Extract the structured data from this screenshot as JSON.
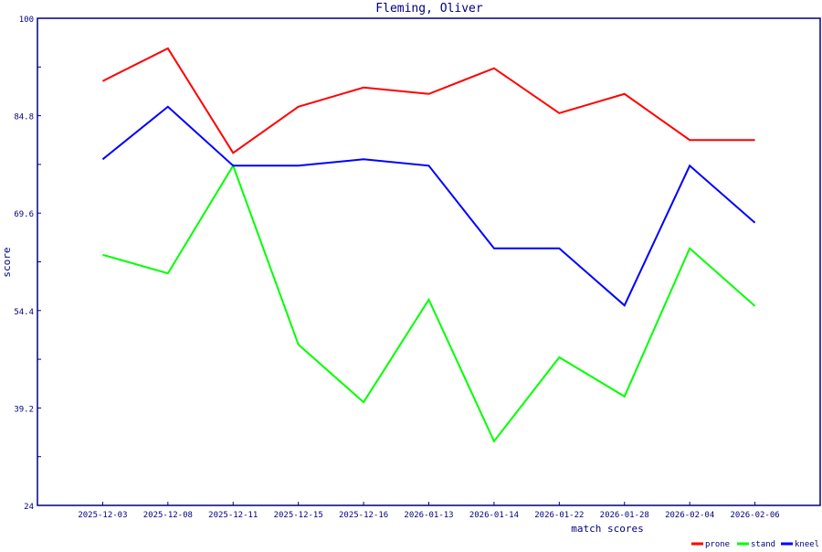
{
  "chart_data": {
    "type": "line",
    "title": "Fleming, Oliver",
    "xlabel": "match scores",
    "ylabel": "score",
    "ylim": [
      24,
      100
    ],
    "yticks": [
      "100",
      "84.8",
      "69.6",
      "54.4",
      "39.2",
      "24"
    ],
    "grid": false,
    "legend_position": "bottom-right",
    "categories": [
      "2025-12-03",
      "2025-12-08",
      "2025-12-11",
      "2025-12-15",
      "2025-12-16",
      "2026-01-13",
      "2026-01-14",
      "2026-01-22",
      "2026-01-28",
      "2026-02-04",
      "2026-02-06"
    ],
    "series": [
      {
        "name": "prone",
        "color": "#ff0000",
        "values": [
          90.2,
          95.3,
          79.0,
          86.2,
          89.2,
          88.2,
          92.2,
          85.2,
          88.2,
          81.0,
          81.0
        ]
      },
      {
        "name": "stand",
        "color": "#00ff00",
        "values": [
          63.1,
          60.2,
          77.0,
          49.1,
          40.1,
          56.1,
          34.0,
          47.1,
          41.0,
          64.1,
          55.1
        ]
      },
      {
        "name": "kneel",
        "color": "#0000ff",
        "values": [
          78.0,
          86.2,
          77.0,
          77.0,
          78.0,
          77.0,
          64.1,
          64.1,
          55.2,
          77.0,
          68.1
        ]
      }
    ],
    "axis_color": "#000080"
  }
}
